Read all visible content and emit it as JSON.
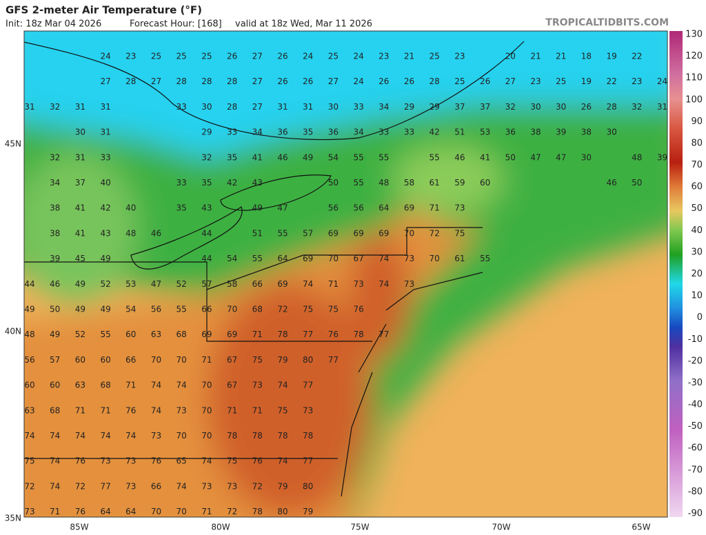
{
  "header": {
    "title": "GFS 2-meter Air Temperature (°F)",
    "init": "Init: 18z Mar 04 2026",
    "forecast_hour": "Forecast Hour: [168]",
    "valid": "valid at 18z Wed, Mar 11 2026",
    "site": "TROPICALTIDBITS.COM"
  },
  "map": {
    "latitude_labels": [
      "45N",
      "40N",
      "35N"
    ],
    "longitude_labels": [
      "85W",
      "80W",
      "75W",
      "70W",
      "65W"
    ],
    "rows": [
      [
        null,
        null,
        null,
        24,
        23,
        25,
        25,
        25,
        26,
        27,
        26,
        24,
        25,
        24,
        23,
        21,
        25,
        23,
        null,
        20,
        21,
        21,
        18,
        19,
        22
      ],
      [
        null,
        null,
        null,
        27,
        28,
        27,
        28,
        28,
        28,
        27,
        26,
        26,
        27,
        24,
        26,
        26,
        28,
        25,
        26,
        27,
        23,
        25,
        19,
        22,
        23,
        24
      ],
      [
        31,
        32,
        31,
        31,
        null,
        null,
        33,
        30,
        28,
        27,
        31,
        31,
        30,
        33,
        34,
        29,
        29,
        37,
        37,
        32,
        30,
        30,
        26,
        28,
        32,
        31
      ],
      [
        null,
        null,
        30,
        31,
        null,
        null,
        null,
        29,
        33,
        34,
        36,
        35,
        36,
        34,
        33,
        33,
        42,
        51,
        53,
        36,
        38,
        39,
        38,
        30
      ],
      [
        null,
        32,
        31,
        33,
        null,
        null,
        null,
        32,
        35,
        41,
        46,
        49,
        54,
        55,
        55,
        null,
        55,
        46,
        41,
        50,
        47,
        47,
        30,
        null,
        48,
        39
      ],
      [
        null,
        34,
        37,
        40,
        null,
        null,
        33,
        35,
        42,
        43,
        null,
        null,
        50,
        55,
        48,
        58,
        61,
        59,
        60,
        null,
        null,
        null,
        null,
        46,
        50
      ],
      [
        null,
        38,
        41,
        42,
        40,
        null,
        35,
        43,
        null,
        49,
        47,
        null,
        56,
        56,
        64,
        69,
        71,
        73
      ],
      [
        null,
        38,
        41,
        43,
        48,
        46,
        null,
        44,
        null,
        51,
        55,
        57,
        69,
        69,
        69,
        70,
        72,
        75
      ],
      [
        null,
        39,
        45,
        49,
        null,
        null,
        null,
        44,
        54,
        55,
        64,
        69,
        70,
        67,
        74,
        73,
        70,
        61,
        55
      ],
      [
        44,
        46,
        49,
        52,
        53,
        47,
        52,
        57,
        58,
        66,
        69,
        74,
        71,
        73,
        74,
        73
      ],
      [
        49,
        50,
        49,
        49,
        54,
        56,
        55,
        66,
        70,
        68,
        72,
        75,
        75,
        76
      ],
      [
        48,
        49,
        52,
        55,
        60,
        63,
        68,
        69,
        69,
        71,
        78,
        77,
        76,
        78,
        77
      ],
      [
        56,
        57,
        60,
        60,
        66,
        70,
        70,
        71,
        67,
        75,
        79,
        80,
        77
      ],
      [
        60,
        60,
        63,
        68,
        71,
        74,
        74,
        70,
        67,
        73,
        74,
        77
      ],
      [
        63,
        68,
        71,
        71,
        76,
        74,
        73,
        70,
        71,
        71,
        75,
        73
      ],
      [
        74,
        74,
        74,
        74,
        74,
        73,
        70,
        70,
        78,
        78,
        78,
        78
      ],
      [
        75,
        74,
        76,
        73,
        73,
        76,
        65,
        74,
        75,
        76,
        74,
        77
      ],
      [
        72,
        74,
        72,
        77,
        73,
        66,
        74,
        73,
        73,
        72,
        79,
        80
      ],
      [
        73,
        71,
        76,
        64,
        64,
        70,
        70,
        71,
        72,
        78,
        80,
        79
      ]
    ]
  },
  "colorbar": {
    "labels": [
      130,
      120,
      110,
      100,
      90,
      80,
      70,
      60,
      50,
      40,
      30,
      20,
      10,
      0,
      -10,
      -20,
      -30,
      -40,
      -50,
      -60,
      -70,
      -80,
      -90
    ]
  }
}
